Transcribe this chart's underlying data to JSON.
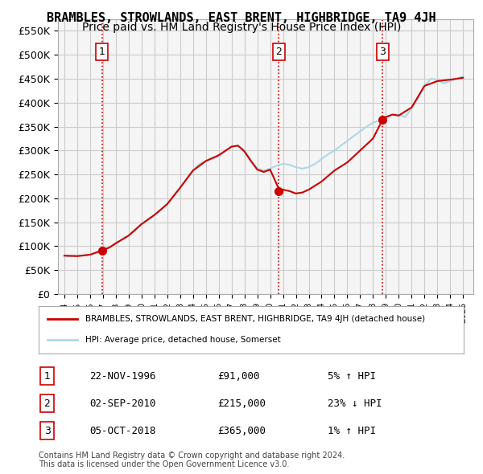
{
  "title": "BRAMBLES, STROWLANDS, EAST BRENT, HIGHBRIDGE, TA9 4JH",
  "subtitle": "Price paid vs. HM Land Registry's House Price Index (HPI)",
  "xlabel": "",
  "ylabel": "",
  "ylim": [
    0,
    575000
  ],
  "yticks": [
    0,
    50000,
    100000,
    150000,
    200000,
    250000,
    300000,
    350000,
    400000,
    450000,
    500000,
    550000
  ],
  "ytick_labels": [
    "£0",
    "£50K",
    "£100K",
    "£150K",
    "£200K",
    "£250K",
    "£300K",
    "£350K",
    "£400K",
    "£450K",
    "£500K",
    "£550K"
  ],
  "x_start_year": 1994,
  "x_end_year": 2026,
  "sale_dates": [
    "1996-11-22",
    "2010-09-02",
    "2018-10-05"
  ],
  "sale_prices": [
    91000,
    215000,
    365000
  ],
  "sale_labels": [
    "1",
    "2",
    "3"
  ],
  "sale_info": [
    {
      "date": "22-NOV-1996",
      "price": "£91,000",
      "hpi": "5% ↑ HPI"
    },
    {
      "date": "02-SEP-2010",
      "price": "£215,000",
      "hpi": "23% ↓ HPI"
    },
    {
      "date": "05-OCT-2018",
      "price": "£365,000",
      "hpi": "1% ↑ HPI"
    }
  ],
  "hpi_color": "#add8e6",
  "sale_line_color": "#cc0000",
  "sale_dot_color": "#cc0000",
  "vline_color": "#cc0000",
  "grid_color": "#cccccc",
  "bg_color": "#f5f5f5",
  "legend_line1": "BRAMBLES, STROWLANDS, EAST BRENT, HIGHBRIDGE, TA9 4JH (detached house)",
  "legend_line2": "HPI: Average price, detached house, Somerset",
  "footnote1": "Contains HM Land Registry data © Crown copyright and database right 2024.",
  "footnote2": "This data is licensed under the Open Government Licence v3.0.",
  "title_fontsize": 11,
  "subtitle_fontsize": 10
}
